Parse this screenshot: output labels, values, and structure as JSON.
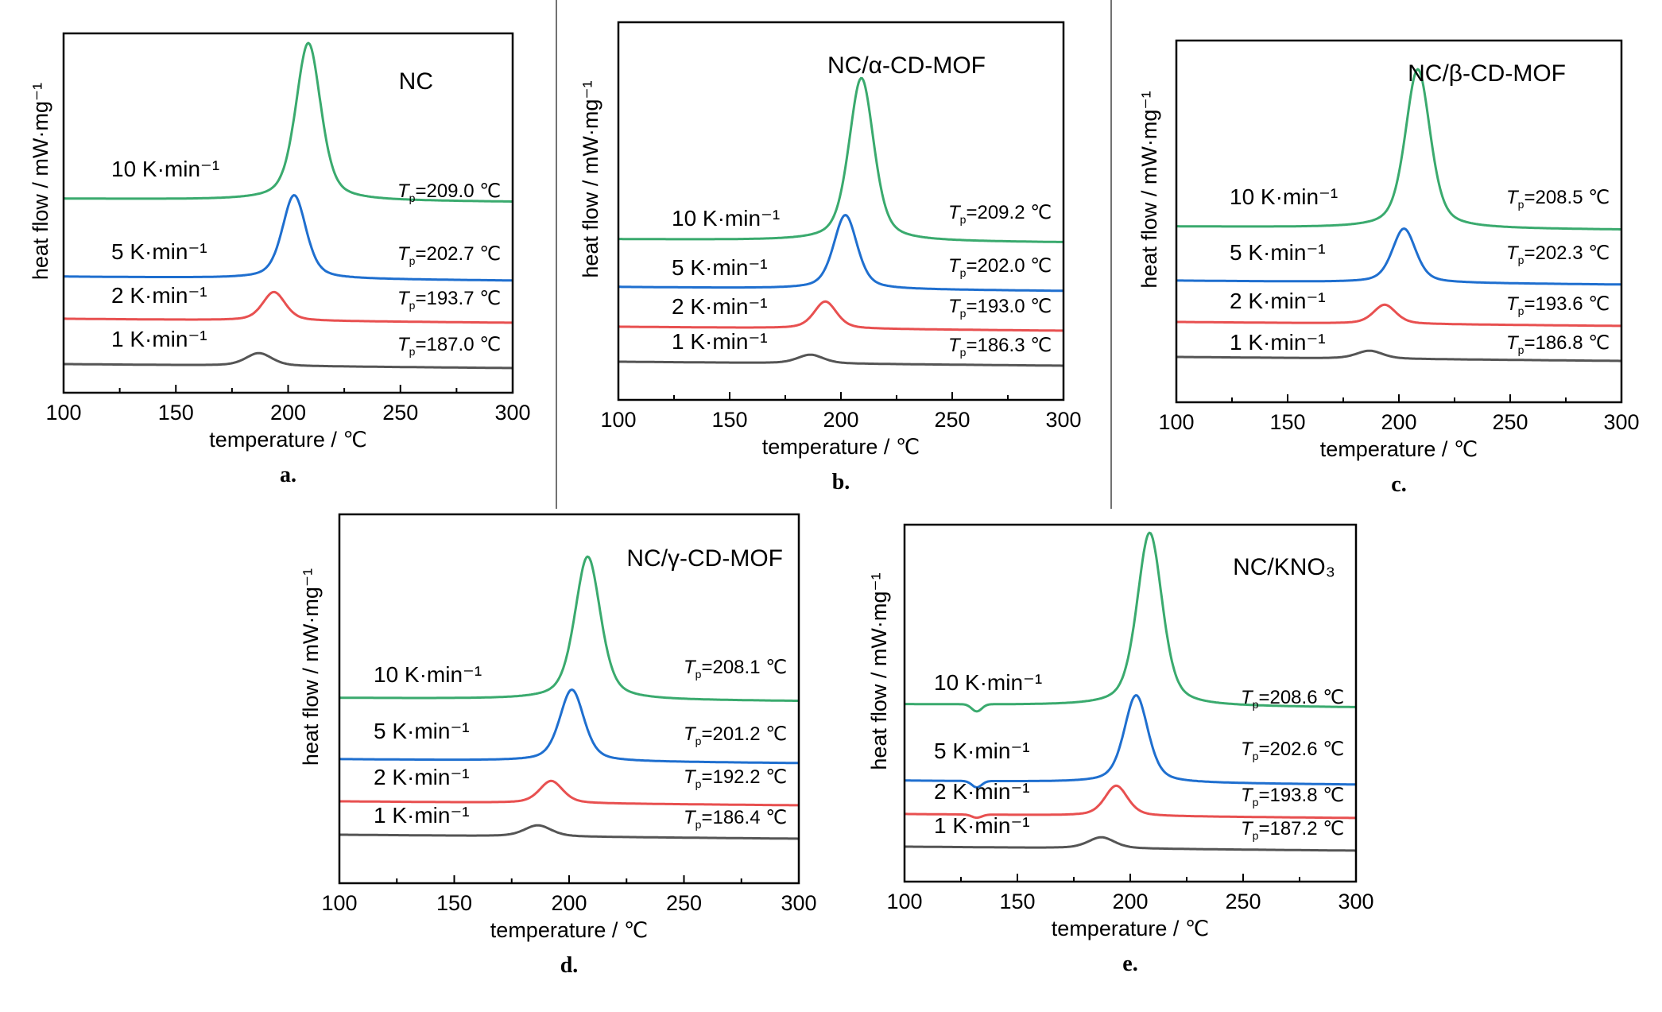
{
  "colors": {
    "r10": "#3aaa6e",
    "r5": "#1f6fcf",
    "r2": "#e85050",
    "r1": "#555555",
    "axis": "#000000"
  },
  "x_unit_label": "temperature / ℃",
  "y_label": "heat flow / mW·mg⁻¹",
  "rate_labels": [
    "10 K·min⁻¹",
    "5 K·min⁻¹",
    "2 K·min⁻¹",
    "1 K·min⁻¹"
  ],
  "chart_data": [
    {
      "type": "line",
      "panel": "a.",
      "title": "NC",
      "xlabel": "temperature / ℃",
      "ylabel": "heat flow / mW·mg⁻¹",
      "xlim": [
        100,
        300
      ],
      "xticks": [
        100,
        150,
        200,
        250,
        300
      ],
      "series": [
        {
          "name": "10 K·min⁻¹",
          "color": "#3aaa6e",
          "peak_x": 209.0,
          "peak_label": "=209.0 ℃"
        },
        {
          "name": "5 K·min⁻¹",
          "color": "#1f6fcf",
          "peak_x": 202.7,
          "peak_label": "=202.7 ℃"
        },
        {
          "name": "2 K·min⁻¹",
          "color": "#e85050",
          "peak_x": 193.7,
          "peak_label": "=193.7 ℃"
        },
        {
          "name": "1 K·min⁻¹",
          "color": "#555555",
          "peak_x": 187.0,
          "peak_label": "=187.0 ℃"
        }
      ]
    },
    {
      "type": "line",
      "panel": "b.",
      "title": "NC/α-CD-MOF",
      "xlabel": "temperature / ℃",
      "ylabel": "heat flow / mW·mg⁻¹",
      "xlim": [
        100,
        300
      ],
      "xticks": [
        100,
        150,
        200,
        250,
        300
      ],
      "series": [
        {
          "name": "10 K·min⁻¹",
          "color": "#3aaa6e",
          "peak_x": 209.2,
          "peak_label": "=209.2 ℃"
        },
        {
          "name": "5 K·min⁻¹",
          "color": "#1f6fcf",
          "peak_x": 202.0,
          "peak_label": "=202.0 ℃"
        },
        {
          "name": "2 K·min⁻¹",
          "color": "#e85050",
          "peak_x": 193.0,
          "peak_label": "=193.0 ℃"
        },
        {
          "name": "1 K·min⁻¹",
          "color": "#555555",
          "peak_x": 186.3,
          "peak_label": "=186.3 ℃"
        }
      ]
    },
    {
      "type": "line",
      "panel": "c.",
      "title": "NC/β-CD-MOF",
      "xlabel": "temperature / ℃",
      "ylabel": "heat flow / mW·mg⁻¹",
      "xlim": [
        100,
        300
      ],
      "xticks": [
        100,
        150,
        200,
        250,
        300
      ],
      "series": [
        {
          "name": "10 K·min⁻¹",
          "color": "#3aaa6e",
          "peak_x": 208.5,
          "peak_label": "=208.5 ℃"
        },
        {
          "name": "5 K·min⁻¹",
          "color": "#1f6fcf",
          "peak_x": 202.3,
          "peak_label": "=202.3 ℃"
        },
        {
          "name": "2 K·min⁻¹",
          "color": "#e85050",
          "peak_x": 193.6,
          "peak_label": "=193.6 ℃"
        },
        {
          "name": "1 K·min⁻¹",
          "color": "#555555",
          "peak_x": 186.8,
          "peak_label": "=186.8 ℃"
        }
      ]
    },
    {
      "type": "line",
      "panel": "d.",
      "title": "NC/γ-CD-MOF",
      "xlabel": "temperature / ℃",
      "ylabel": "heat flow / mW·mg⁻¹",
      "xlim": [
        100,
        300
      ],
      "xticks": [
        100,
        150,
        200,
        250,
        300
      ],
      "series": [
        {
          "name": "10 K·min⁻¹",
          "color": "#3aaa6e",
          "peak_x": 208.1,
          "peak_label": "=208.1 ℃"
        },
        {
          "name": "5 K·min⁻¹",
          "color": "#1f6fcf",
          "peak_x": 201.2,
          "peak_label": "=201.2 ℃"
        },
        {
          "name": "2 K·min⁻¹",
          "color": "#e85050",
          "peak_x": 192.2,
          "peak_label": "=192.2 ℃"
        },
        {
          "name": "1 K·min⁻¹",
          "color": "#555555",
          "peak_x": 186.4,
          "peak_label": "=186.4 ℃"
        }
      ]
    },
    {
      "type": "line",
      "panel": "e.",
      "title": "NC/KNO₃",
      "xlabel": "temperature / ℃",
      "ylabel": "heat flow / mW·mg⁻¹",
      "xlim": [
        100,
        300
      ],
      "xticks": [
        100,
        150,
        200,
        250,
        300
      ],
      "series": [
        {
          "name": "10 K·min⁻¹",
          "color": "#3aaa6e",
          "peak_x": 208.6,
          "peak_label": "=208.6 ℃"
        },
        {
          "name": "5 K·min⁻¹",
          "color": "#1f6fcf",
          "peak_x": 202.6,
          "peak_label": "=202.6 ℃"
        },
        {
          "name": "2 K·min⁻¹",
          "color": "#e85050",
          "peak_x": 193.8,
          "peak_label": "=193.8 ℃"
        },
        {
          "name": "1 K·min⁻¹",
          "color": "#555555",
          "peak_x": 187.2,
          "peak_label": "=187.2 ℃"
        }
      ]
    }
  ]
}
